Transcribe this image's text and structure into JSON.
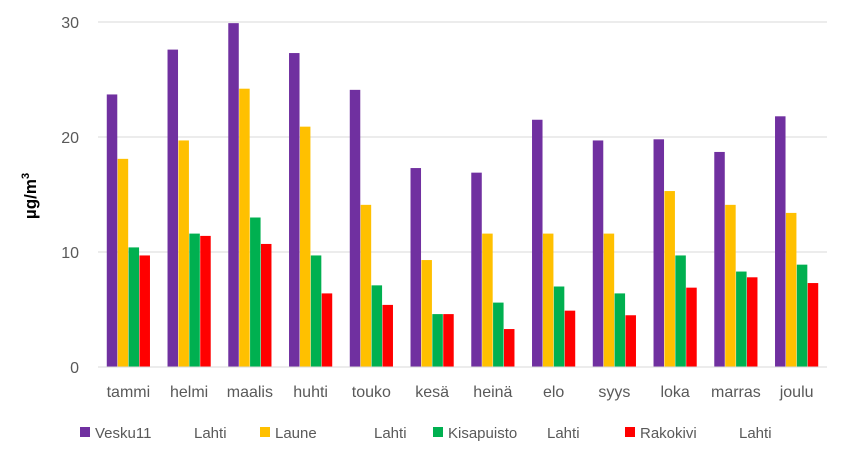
{
  "chart_data": {
    "type": "bar",
    "categories": [
      "tammi",
      "helmi",
      "maalis",
      "huhti",
      "touko",
      "kesä",
      "heinä",
      "elo",
      "syys",
      "loka",
      "marras",
      "joulu"
    ],
    "series": [
      {
        "name": "Vesku11",
        "name_suffix": "Lahti",
        "color": "#7030A0",
        "values": [
          23.7,
          27.6,
          29.9,
          27.3,
          24.1,
          17.3,
          16.9,
          21.5,
          19.7,
          19.8,
          18.7,
          21.8
        ]
      },
      {
        "name": "Laune",
        "name_suffix": "Lahti",
        "color": "#FFC000",
        "values": [
          18.1,
          19.7,
          24.2,
          20.9,
          14.1,
          9.3,
          11.6,
          11.6,
          11.6,
          15.3,
          14.1,
          13.4
        ]
      },
      {
        "name": "Kisapuisto",
        "name_suffix": "Lahti",
        "color": "#00B050",
        "values": [
          10.4,
          11.6,
          13.0,
          9.7,
          7.1,
          4.6,
          5.6,
          7.0,
          6.4,
          9.7,
          8.3,
          8.9
        ]
      },
      {
        "name": "Rakokivi",
        "name_suffix": "Lahti",
        "color": "#FF0000",
        "values": [
          9.7,
          11.4,
          10.7,
          6.4,
          5.4,
          4.6,
          3.3,
          4.9,
          4.5,
          6.9,
          7.8,
          7.3
        ]
      }
    ],
    "ylabel": "µg/m",
    "ylabel_superscript": "3",
    "yticks": [
      "0",
      "10",
      "20",
      "30"
    ],
    "ylim": [
      0,
      30
    ],
    "grid": true,
    "legend_position": "bottom"
  }
}
